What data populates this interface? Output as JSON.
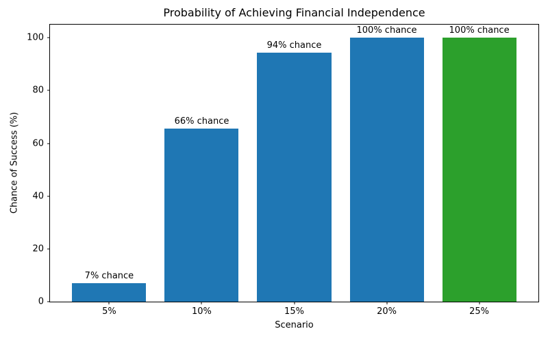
{
  "chart_data": {
    "type": "bar",
    "title": "Probability of Achieving Financial Independence",
    "xlabel": "Scenario",
    "ylabel": "Chance of Success (%)",
    "categories": [
      "5%",
      "10%",
      "15%",
      "20%",
      "25%"
    ],
    "values": [
      7,
      65.5,
      94.5,
      100,
      100
    ],
    "bar_labels": [
      "7% chance",
      "66% chance",
      "94% chance",
      "100% chance",
      "100% chance"
    ],
    "bar_colors": [
      "#1f77b4",
      "#1f77b4",
      "#1f77b4",
      "#1f77b4",
      "#2ca02c"
    ],
    "bar_width_units": 0.8,
    "ylim": [
      0,
      105
    ],
    "yticks": [
      0,
      20,
      40,
      60,
      80,
      100
    ],
    "grid": false,
    "legend": false,
    "background": "#ffffff",
    "spine_color": "#000000",
    "text_color": "#000000"
  }
}
